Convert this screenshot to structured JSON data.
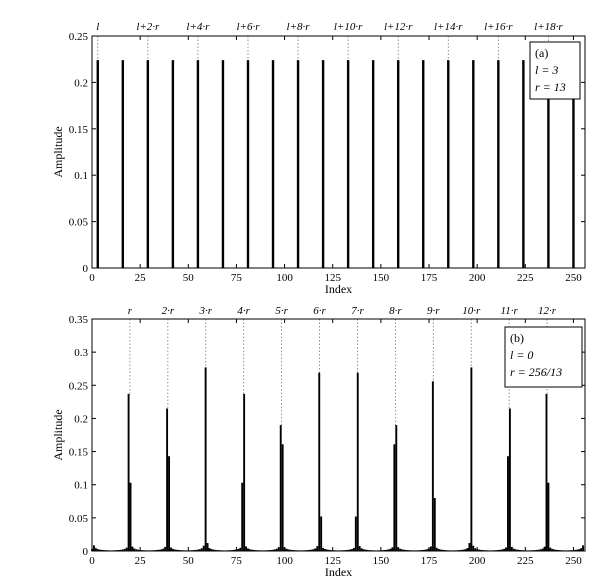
{
  "chart_data": [
    {
      "type": "bar",
      "xlabel": "Index",
      "ylabel": "Amplitude",
      "xlim": [
        0,
        256
      ],
      "ylim": [
        0,
        0.25
      ],
      "xticks": [
        "0",
        "25",
        "50",
        "75",
        "100",
        "125",
        "150",
        "175",
        "200",
        "225",
        "250"
      ],
      "yticks": [
        "0",
        "0.05",
        "0.1",
        "0.15",
        "0.2",
        "0.25"
      ],
      "top_labels": [
        "l",
        "l+2·r",
        "l+4·r",
        "l+6·r",
        "l+8·r",
        "l+10·r",
        "l+12·r",
        "l+14·r",
        "l+16·r",
        "l+18·r"
      ],
      "legend": [
        "(a)",
        "l = 3",
        "r = 13"
      ],
      "bars": {
        "x": [
          3,
          16,
          29,
          42,
          55,
          68,
          81,
          94,
          107,
          120,
          133,
          146,
          159,
          172,
          185,
          198,
          211,
          224,
          237,
          250
        ],
        "values": [
          0.224,
          0.224,
          0.224,
          0.224,
          0.224,
          0.224,
          0.224,
          0.224,
          0.224,
          0.224,
          0.224,
          0.224,
          0.224,
          0.224,
          0.224,
          0.224,
          0.224,
          0.224,
          0.224,
          0.224
        ]
      },
      "grid": false,
      "legend_position": "top-right"
    },
    {
      "type": "bar",
      "xlabel": "Index",
      "ylabel": "Amplitude",
      "xlim": [
        0,
        256
      ],
      "ylim": [
        0,
        0.35
      ],
      "xticks": [
        "0",
        "25",
        "50",
        "75",
        "100",
        "125",
        "150",
        "175",
        "200",
        "225",
        "250"
      ],
      "yticks": [
        "0",
        "0.05",
        "0.1",
        "0.15",
        "0.2",
        "0.25",
        "0.3",
        "0.35"
      ],
      "top_labels": [
        "r",
        "2·r",
        "3·r",
        "4·r",
        "5·r",
        "6·r",
        "7·r",
        "8·r",
        "9·r",
        "10·r",
        "11·r",
        "12·r"
      ],
      "legend": [
        "(b)",
        "l = 0",
        "r = 256/13"
      ],
      "period": 19.6923,
      "peaks": [
        {
          "x_left": 19,
          "h_left": 0.237,
          "x_right": 20,
          "h_right": 0.103
        },
        {
          "x_left": 39,
          "h_left": 0.215,
          "x_right": 40,
          "h_right": 0.143
        },
        {
          "x_left": 59,
          "h_left": 0.277,
          "x_right": 60,
          "h_right": 0.012
        },
        {
          "x_left": 78,
          "h_left": 0.103,
          "x_right": 79,
          "h_right": 0.237
        },
        {
          "x_left": 98,
          "h_left": 0.19,
          "x_right": 99,
          "h_right": 0.161
        },
        {
          "x_left": 118,
          "h_left": 0.269,
          "x_right": 119,
          "h_right": 0.052
        },
        {
          "x_left": 137,
          "h_left": 0.052,
          "x_right": 138,
          "h_right": 0.269
        },
        {
          "x_left": 157,
          "h_left": 0.161,
          "x_right": 158,
          "h_right": 0.19
        },
        {
          "x_left": 177,
          "h_left": 0.256,
          "x_right": 178,
          "h_right": 0.08
        },
        {
          "x_left": 196,
          "h_left": 0.012,
          "x_right": 197,
          "h_right": 0.277
        },
        {
          "x_left": 216,
          "h_left": 0.143,
          "x_right": 217,
          "h_right": 0.215
        },
        {
          "x_left": 236,
          "h_left": 0.237,
          "x_right": 237,
          "h_right": 0.103
        }
      ],
      "grid": false,
      "legend_position": "top-right"
    }
  ]
}
